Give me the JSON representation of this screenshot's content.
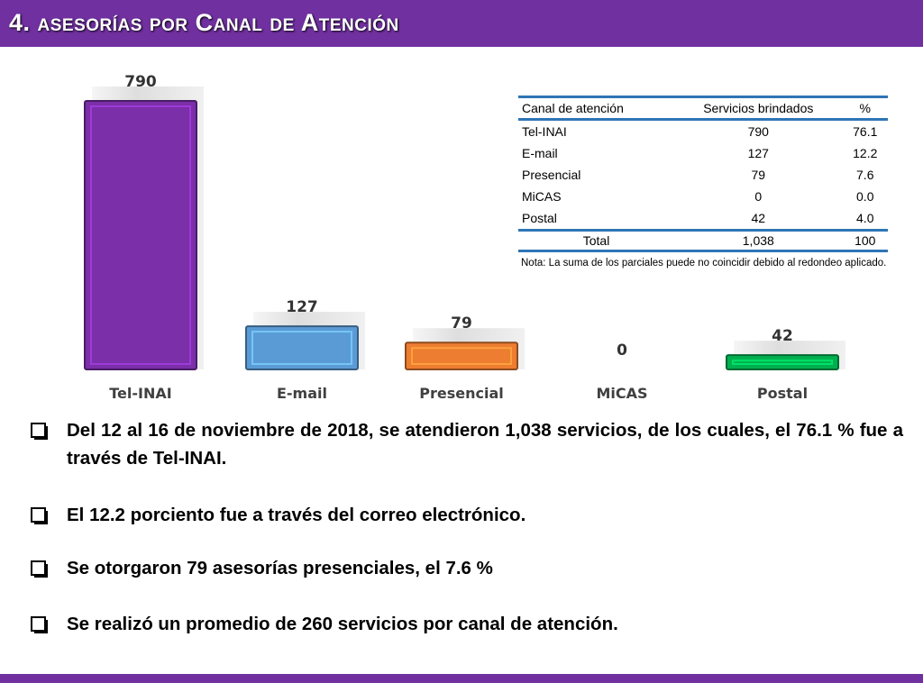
{
  "header": {
    "title": "4. asesorías por Canal de Atención"
  },
  "chart_data": {
    "type": "bar",
    "categories": [
      "Tel-INAI",
      "E-mail",
      "Presencial",
      "MiCAS",
      "Postal"
    ],
    "values": [
      790,
      127,
      79,
      0,
      42
    ],
    "data_labels": [
      "790",
      "127",
      "79",
      "0",
      "42"
    ],
    "colors": [
      "#7b2fa8",
      "#5b9bd5",
      "#ed7d31",
      "#a5a5a5",
      "#00b050"
    ],
    "title": "",
    "xlabel": "",
    "ylabel": "",
    "ylim": [
      0,
      790
    ],
    "grid": false,
    "legend": "none"
  },
  "table": {
    "headers": [
      "Canal de atención",
      "Servicios brindados",
      "%"
    ],
    "rows": [
      [
        "Tel-INAI",
        "790",
        "76.1"
      ],
      [
        "E-mail",
        "127",
        "12.2"
      ],
      [
        "Presencial",
        "79",
        "7.6"
      ],
      [
        "MiCAS",
        "0",
        "0.0"
      ],
      [
        "Postal",
        "42",
        "4.0"
      ]
    ],
    "total": [
      "Total",
      "1,038",
      "100"
    ]
  },
  "note": "Nota: La suma de los parciales puede no coincidir debido al redondeo aplicado.",
  "bullets": [
    "Del 12 al 16 de noviembre de 2018, se atendieron 1,038 servicios, de los cuales, el 76.1 % fue a través de Tel-INAI.",
    "El 12.2 porciento fue a través del correo electrónico.",
    "Se otorgaron 79 asesorías presenciales, el 7.6 %",
    "Se realizó un promedio de 260 servicios por canal de atención."
  ],
  "colors": {
    "accent": "#7030a0",
    "table_rule": "#2e75b6"
  }
}
